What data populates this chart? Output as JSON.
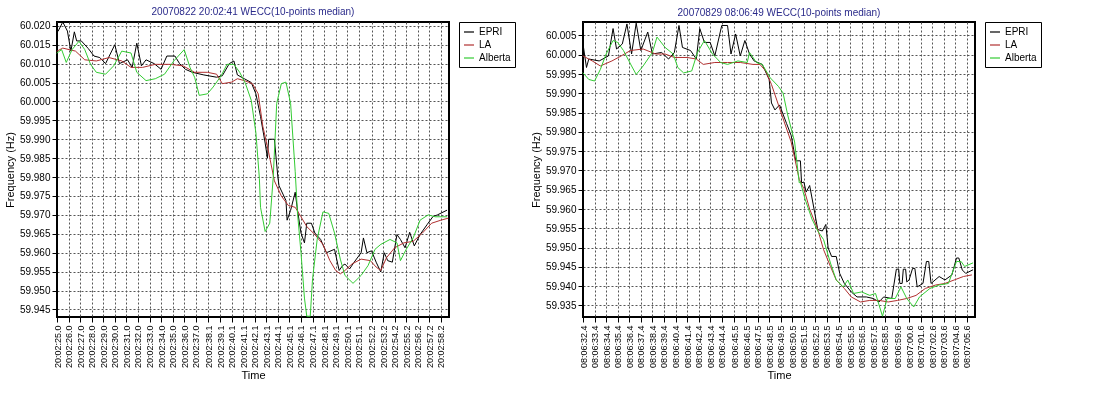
{
  "chart_data": [
    {
      "type": "line",
      "title": "20070822 20:02:41 WECC(10-points median)",
      "xlabel": "Time",
      "ylabel": "Frequency (Hz)",
      "legend": "right",
      "grid": true,
      "line_style": "solid",
      "xlim": [
        "2007-08-22T20:02:25.0",
        "2007-08-22T20:02:58.9"
      ],
      "ylim": [
        59.943,
        60.021
      ],
      "xticks": [
        {
          "value": "2007-08-22T20:02:25.0",
          "label": "20:02:25.0"
        },
        {
          "value": "2007-08-22T20:02:26.0",
          "label": "20:02:26.0"
        },
        {
          "value": "2007-08-22T20:02:27.0",
          "label": "20:02:27.0"
        },
        {
          "value": "2007-08-22T20:02:28.0",
          "label": "20:02:28.0"
        },
        {
          "value": "2007-08-22T20:02:29.0",
          "label": "20:02:29.0"
        },
        {
          "value": "2007-08-22T20:02:30.0",
          "label": "20:02:30.0"
        },
        {
          "value": "2007-08-22T20:02:31.0",
          "label": "20:02:31.0"
        },
        {
          "value": "2007-08-22T20:02:32.0",
          "label": "20:02:32.0"
        },
        {
          "value": "2007-08-22T20:02:33.0",
          "label": "20:02:33.0"
        },
        {
          "value": "2007-08-22T20:02:34.0",
          "label": "20:02:34.0"
        },
        {
          "value": "2007-08-22T20:02:35.0",
          "label": "20:02:35.0"
        },
        {
          "value": "2007-08-22T20:02:36.0",
          "label": "20:02:36.0"
        },
        {
          "value": "2007-08-22T20:02:37.0",
          "label": "20:02:37.0"
        },
        {
          "value": "2007-08-22T20:02:38.1",
          "label": "20:02:38.1"
        },
        {
          "value": "2007-08-22T20:02:39.1",
          "label": "20:02:39.1"
        },
        {
          "value": "2007-08-22T20:02:40.1",
          "label": "20:02:40.1"
        },
        {
          "value": "2007-08-22T20:02:41.1",
          "label": "20:02:41.1"
        },
        {
          "value": "2007-08-22T20:02:42.1",
          "label": "20:02:42.1"
        },
        {
          "value": "2007-08-22T20:02:43.1",
          "label": "20:02:43.1"
        },
        {
          "value": "2007-08-22T20:02:44.1",
          "label": "20:02:44.1"
        },
        {
          "value": "2007-08-22T20:02:45.1",
          "label": "20:02:45.1"
        },
        {
          "value": "2007-08-22T20:02:46.1",
          "label": "20:02:46.1"
        },
        {
          "value": "2007-08-22T20:02:47.1",
          "label": "20:02:47.1"
        },
        {
          "value": "2007-08-22T20:02:48.1",
          "label": "20:02:48.1"
        },
        {
          "value": "2007-08-22T20:02:49.1",
          "label": "20:02:49.1"
        },
        {
          "value": "2007-08-22T20:02:50.1",
          "label": "20:02:50.1"
        },
        {
          "value": "2007-08-22T20:02:51.1",
          "label": "20:02:51.1"
        },
        {
          "value": "2007-08-22T20:02:52.2",
          "label": "20:02:52.2"
        },
        {
          "value": "2007-08-22T20:02:53.2",
          "label": "20:02:53.2"
        },
        {
          "value": "2007-08-22T20:02:54.2",
          "label": "20:02:54.2"
        },
        {
          "value": "2007-08-22T20:02:55.2",
          "label": "20:02:55.2"
        },
        {
          "value": "2007-08-22T20:02:56.2",
          "label": "20:02:56.2"
        },
        {
          "value": "2007-08-22T20:02:57.2",
          "label": "20:02:57.2"
        },
        {
          "value": "2007-08-22T20:02:58.2",
          "label": "20:02:58.2"
        }
      ],
      "yticks": [
        {
          "value": 59.945,
          "label": "59.945"
        },
        {
          "value": 59.95,
          "label": "59.950"
        },
        {
          "value": 59.955,
          "label": "59.955"
        },
        {
          "value": 59.96,
          "label": "59.960"
        },
        {
          "value": 59.965,
          "label": "59.965"
        },
        {
          "value": 59.97,
          "label": "59.970"
        },
        {
          "value": 59.975,
          "label": "59.975"
        },
        {
          "value": 59.98,
          "label": "59.980"
        },
        {
          "value": 59.985,
          "label": "59.985"
        },
        {
          "value": 59.99,
          "label": "59.990"
        },
        {
          "value": 59.995,
          "label": "59.995"
        },
        {
          "value": 60.0,
          "label": "60.000"
        },
        {
          "value": 60.005,
          "label": "60.005"
        },
        {
          "value": 60.01,
          "label": "60.010"
        },
        {
          "value": 60.015,
          "label": "60.015"
        },
        {
          "value": 60.02,
          "label": "60.020"
        }
      ],
      "series": [
        {
          "name": "EPRI",
          "color": "#000000",
          "x": [
            "2007-08-22T20:02:25.1",
            "2007-08-22T20:02:25.5",
            "2007-08-22T20:02:25.9",
            "2007-08-22T20:02:26.2",
            "2007-08-22T20:02:26.5",
            "2007-08-22T20:02:26.7",
            "2007-08-22T20:02:27.1",
            "2007-08-22T20:02:27.7",
            "2007-08-22T20:02:28.2",
            "2007-08-22T20:02:28.7",
            "2007-08-22T20:02:29.2",
            "2007-08-22T20:02:30.0",
            "2007-08-22T20:02:30.4",
            "2007-08-22T20:02:31.1",
            "2007-08-22T20:02:31.5",
            "2007-08-22T20:02:31.9",
            "2007-08-22T20:02:32.3",
            "2007-08-22T20:02:32.7",
            "2007-08-22T20:02:33.4",
            "2007-08-22T20:02:34.0",
            "2007-08-22T20:02:34.5",
            "2007-08-22T20:02:35.2",
            "2007-08-22T20:02:35.6",
            "2007-08-22T20:02:36.1",
            "2007-08-22T20:02:36.7",
            "2007-08-22T20:02:37.7",
            "2007-08-22T20:02:38.8",
            "2007-08-22T20:02:39.3",
            "2007-08-22T20:02:39.9",
            "2007-08-22T20:02:40.3",
            "2007-08-22T20:02:40.6",
            "2007-08-22T20:02:41.2",
            "2007-08-22T20:02:41.8",
            "2007-08-22T20:02:42.2",
            "2007-08-22T20:02:42.6",
            "2007-08-22T20:02:43.0",
            "2007-08-22T20:02:43.2",
            "2007-08-22T20:02:43.3",
            "2007-08-22T20:02:43.8",
            "2007-08-22T20:02:44.1",
            "2007-08-22T20:02:44.2",
            "2007-08-22T20:02:44.8",
            "2007-08-22T20:02:44.9",
            "2007-08-22T20:02:45.2",
            "2007-08-22T20:02:45.6",
            "2007-08-22T20:02:45.8",
            "2007-08-22T20:02:46.1",
            "2007-08-22T20:02:46.4",
            "2007-08-22T20:02:46.6",
            "2007-08-22T20:02:47.0",
            "2007-08-22T20:02:47.3",
            "2007-08-22T20:02:47.8",
            "2007-08-22T20:02:48.3",
            "2007-08-22T20:02:49.0",
            "2007-08-22T20:02:49.4",
            "2007-08-22T20:02:49.7",
            "2007-08-22T20:02:49.9",
            "2007-08-22T20:02:50.3",
            "2007-08-22T20:02:50.7",
            "2007-08-22T20:02:51.3",
            "2007-08-22T20:02:51.5",
            "2007-08-22T20:02:51.8",
            "2007-08-22T20:02:52.2",
            "2007-08-22T20:02:52.6",
            "2007-08-22T20:02:53.0",
            "2007-08-22T20:02:53.3",
            "2007-08-22T20:02:53.6",
            "2007-08-22T20:02:54.0",
            "2007-08-22T20:02:54.4",
            "2007-08-22T20:02:54.7",
            "2007-08-22T20:02:55.1",
            "2007-08-22T20:02:55.5",
            "2007-08-22T20:02:55.9",
            "2007-08-22T20:02:56.4",
            "2007-08-22T20:02:57.0",
            "2007-08-22T20:02:57.5",
            "2007-08-22T20:02:57.9",
            "2007-08-22T20:02:58.7"
          ],
          "values": [
            60.0186,
            60.021,
            60.0186,
            60.0133,
            60.0184,
            60.016,
            60.016,
            60.014,
            60.012,
            60.0116,
            60.01,
            60.015,
            60.01,
            60.011,
            60.009,
            60.0154,
            60.0094,
            60.011,
            60.01,
            60.0085,
            60.012,
            60.012,
            60.01,
            60.0085,
            60.0077,
            60.007,
            60.0064,
            60.0068,
            60.01,
            60.0107,
            60.007,
            60.006,
            60.005,
            60.002,
            59.996,
            59.989,
            59.985,
            59.99,
            59.99,
            59.98,
            59.9777,
            59.9738,
            59.9686,
            59.9712,
            59.976,
            59.9712,
            59.9652,
            59.9626,
            59.9678,
            59.9678,
            59.9652,
            59.9635,
            59.96,
            59.9609,
            59.9553,
            59.9566,
            59.957,
            59.9557,
            59.9575,
            59.96,
            59.9639,
            59.96,
            59.9605,
            59.9575,
            59.9549,
            59.96,
            59.9579,
            59.9575,
            59.9648,
            59.9635,
            59.9613,
            59.9654,
            59.9618,
            59.9648,
            59.9674,
            59.9695,
            59.97,
            59.9712
          ]
        },
        {
          "name": "LA",
          "color": "#b03030",
          "x": [
            "2007-08-22T20:02:25.0",
            "2007-08-22T20:02:25.5",
            "2007-08-22T20:02:26.6",
            "2007-08-22T20:02:27.4",
            "2007-08-22T20:02:28.4",
            "2007-08-22T20:02:29.5",
            "2007-08-22T20:02:30.6",
            "2007-08-22T20:02:31.4",
            "2007-08-22T20:02:32.4",
            "2007-08-22T20:02:33.5",
            "2007-08-22T20:02:34.8",
            "2007-08-22T20:02:35.9",
            "2007-08-22T20:02:36.9",
            "2007-08-22T20:02:38.0",
            "2007-08-22T20:02:38.8",
            "2007-08-22T20:02:39.3",
            "2007-08-22T20:02:40.1",
            "2007-08-22T20:02:40.6",
            "2007-08-22T20:02:41.2",
            "2007-08-22T20:02:41.9",
            "2007-08-22T20:02:42.4",
            "2007-08-22T20:02:42.8",
            "2007-08-22T20:02:43.3",
            "2007-08-22T20:02:43.8",
            "2007-08-22T20:02:44.4",
            "2007-08-22T20:02:45.0",
            "2007-08-22T20:02:45.6",
            "2007-08-22T20:02:46.1",
            "2007-08-22T20:02:46.6",
            "2007-08-22T20:02:47.3",
            "2007-08-22T20:02:48.0",
            "2007-08-22T20:02:48.6",
            "2007-08-22T20:02:49.1",
            "2007-08-22T20:02:49.5",
            "2007-08-22T20:02:49.9",
            "2007-08-22T20:02:50.5",
            "2007-08-22T20:02:51.3",
            "2007-08-22T20:02:52.1",
            "2007-08-22T20:02:52.6",
            "2007-08-22T20:02:53.0",
            "2007-08-22T20:02:53.5",
            "2007-08-22T20:02:54.2",
            "2007-08-22T20:02:55.0",
            "2007-08-22T20:02:55.8",
            "2007-08-22T20:02:56.6",
            "2007-08-22T20:02:57.4",
            "2007-08-22T20:02:58.2",
            "2007-08-22T20:02:58.8"
          ],
          "values": [
            60.0133,
            60.0141,
            60.0133,
            60.011,
            60.0107,
            60.0116,
            60.0107,
            60.009,
            60.009,
            60.0098,
            60.0098,
            60.0094,
            60.0077,
            60.0077,
            60.0072,
            60.0047,
            60.0051,
            60.006,
            60.0055,
            60.0047,
            60.002,
            59.9934,
            59.9866,
            59.979,
            59.975,
            59.9725,
            59.972,
            59.9695,
            59.9669,
            59.9648,
            59.9622,
            59.9579,
            59.9553,
            59.9544,
            59.9553,
            59.957,
            59.9583,
            59.9579,
            59.9562,
            59.9553,
            59.9587,
            59.9613,
            59.9626,
            59.963,
            59.9652,
            59.9678,
            59.9686,
            59.9691
          ]
        },
        {
          "name": "Alberta",
          "color": "#33cc33",
          "x": [
            "2007-08-22T20:02:25.0",
            "2007-08-22T20:02:25.4",
            "2007-08-22T20:02:25.8",
            "2007-08-22T20:02:26.3",
            "2007-08-22T20:02:26.9",
            "2007-08-22T20:02:27.4",
            "2007-08-22T20:02:27.9",
            "2007-08-22T20:02:28.4",
            "2007-08-22T20:02:29.2",
            "2007-08-22T20:02:29.9",
            "2007-08-22T20:02:30.6",
            "2007-08-22T20:02:31.4",
            "2007-08-22T20:02:31.9",
            "2007-08-22T20:02:32.7",
            "2007-08-22T20:02:33.5",
            "2007-08-22T20:02:34.3",
            "2007-08-22T20:02:35.1",
            "2007-08-22T20:02:36.0",
            "2007-08-22T20:02:36.5",
            "2007-08-22T20:02:36.9",
            "2007-08-22T20:02:37.3",
            "2007-08-22T20:02:38.0",
            "2007-08-22T20:02:38.5",
            "2007-08-22T20:02:39.2",
            "2007-08-22T20:02:39.7",
            "2007-08-22T20:02:40.3",
            "2007-08-22T20:02:40.8",
            "2007-08-22T20:02:41.3",
            "2007-08-22T20:02:41.8",
            "2007-08-22T20:02:42.2",
            "2007-08-22T20:02:42.5",
            "2007-08-22T20:02:42.6",
            "2007-08-22T20:02:43.0",
            "2007-08-22T20:02:43.4",
            "2007-08-22T20:02:43.7",
            "2007-08-22T20:02:44.0",
            "2007-08-22T20:02:44.4",
            "2007-08-22T20:02:44.8",
            "2007-08-22T20:02:45.2",
            "2007-08-22T20:02:45.6",
            "2007-08-22T20:02:45.8",
            "2007-08-22T20:02:46.1",
            "2007-08-22T20:02:46.4",
            "2007-08-22T20:02:46.6",
            "2007-08-22T20:02:46.9",
            "2007-08-22T20:02:47.1",
            "2007-08-22T20:02:47.5",
            "2007-08-22T20:02:48.0",
            "2007-08-22T20:02:48.5",
            "2007-08-22T20:02:49.0",
            "2007-08-22T20:02:49.5",
            "2007-08-22T20:02:49.9",
            "2007-08-22T20:02:50.6",
            "2007-08-22T20:02:51.3",
            "2007-08-22T20:02:51.9",
            "2007-08-22T20:02:52.5",
            "2007-08-22T20:02:53.0",
            "2007-08-22T20:02:53.8",
            "2007-08-22T20:02:54.4",
            "2007-08-22T20:02:54.7",
            "2007-08-22T20:02:55.2",
            "2007-08-22T20:02:55.8",
            "2007-08-22T20:02:56.4",
            "2007-08-22T20:02:57.1",
            "2007-08-22T20:02:57.7",
            "2007-08-22T20:02:58.7"
          ],
          "values": [
            60.0128,
            60.0137,
            60.0103,
            60.0137,
            60.0159,
            60.0137,
            60.0098,
            60.0077,
            60.0072,
            60.0094,
            60.0133,
            60.0128,
            60.0077,
            60.0055,
            60.006,
            60.0072,
            60.0107,
            60.0137,
            60.009,
            60.0064,
            60.0016,
            60.002,
            60.0038,
            60.0068,
            60.0098,
            60.0098,
            60.0077,
            60.0047,
            60.0003,
            59.9917,
            59.9797,
            59.972,
            59.9656,
            59.9678,
            59.98,
            59.9995,
            60.0047,
            60.0051,
            59.9995,
            59.9814,
            59.9704,
            59.96,
            59.948,
            59.9432,
            59.9432,
            59.9531,
            59.9635,
            59.9708,
            59.9704,
            59.9652,
            59.9583,
            59.954,
            59.9519,
            59.954,
            59.9566,
            59.9609,
            59.9622,
            59.9635,
            59.9626,
            59.9579,
            59.9609,
            59.9639,
            59.9686,
            59.97,
            59.9695,
            59.9695
          ]
        }
      ]
    },
    {
      "type": "line",
      "title": "20070829 08:06:49 WECC(10-points median)",
      "xlabel": "Time",
      "ylabel": "Frequency (Hz)",
      "legend": "right",
      "grid": true,
      "line_style": "solid",
      "xlim": [
        "2007-08-29T08:06:32.4",
        "2007-08-29T08:07:06.3"
      ],
      "ylim": [
        59.932,
        60.0085
      ],
      "xticks": [
        {
          "value": "2007-08-29T08:06:32.4",
          "label": "08:06:32.4"
        },
        {
          "value": "2007-08-29T08:06:33.4",
          "label": "08:06:33.4"
        },
        {
          "value": "2007-08-29T08:06:34.4",
          "label": "08:06:34.4"
        },
        {
          "value": "2007-08-29T08:06:35.4",
          "label": "08:06:35.4"
        },
        {
          "value": "2007-08-29T08:06:36.4",
          "label": "08:06:36.4"
        },
        {
          "value": "2007-08-29T08:06:37.4",
          "label": "08:06:37.4"
        },
        {
          "value": "2007-08-29T08:06:38.4",
          "label": "08:06:38.4"
        },
        {
          "value": "2007-08-29T08:06:39.4",
          "label": "08:06:39.4"
        },
        {
          "value": "2007-08-29T08:06:40.4",
          "label": "08:06:40.4"
        },
        {
          "value": "2007-08-29T08:06:41.4",
          "label": "08:06:41.4"
        },
        {
          "value": "2007-08-29T08:06:42.4",
          "label": "08:06:42.4"
        },
        {
          "value": "2007-08-29T08:06:43.4",
          "label": "08:06:43.4"
        },
        {
          "value": "2007-08-29T08:06:44.4",
          "label": "08:06:44.4"
        },
        {
          "value": "2007-08-29T08:06:45.5",
          "label": "08:06:45.5"
        },
        {
          "value": "2007-08-29T08:06:46.5",
          "label": "08:06:46.5"
        },
        {
          "value": "2007-08-29T08:06:47.5",
          "label": "08:06:47.5"
        },
        {
          "value": "2007-08-29T08:06:48.5",
          "label": "08:06:48.5"
        },
        {
          "value": "2007-08-29T08:06:49.5",
          "label": "08:06:49.5"
        },
        {
          "value": "2007-08-29T08:06:50.5",
          "label": "08:06:50.5"
        },
        {
          "value": "2007-08-29T08:06:51.5",
          "label": "08:06:51.5"
        },
        {
          "value": "2007-08-29T08:06:52.5",
          "label": "08:06:52.5"
        },
        {
          "value": "2007-08-29T08:06:53.5",
          "label": "08:06:53.5"
        },
        {
          "value": "2007-08-29T08:06:54.5",
          "label": "08:06:54.5"
        },
        {
          "value": "2007-08-29T08:06:55.5",
          "label": "08:06:55.5"
        },
        {
          "value": "2007-08-29T08:06:56.5",
          "label": "08:06:56.5"
        },
        {
          "value": "2007-08-29T08:06:57.5",
          "label": "08:06:57.5"
        },
        {
          "value": "2007-08-29T08:06:58.5",
          "label": "08:06:58.5"
        },
        {
          "value": "2007-08-29T08:06:59.6",
          "label": "08:06:59.6"
        },
        {
          "value": "2007-08-29T08:07:00.6",
          "label": "08:07:00.6"
        },
        {
          "value": "2007-08-29T08:07:01.6",
          "label": "08:07:01.6"
        },
        {
          "value": "2007-08-29T08:07:02.6",
          "label": "08:07:02.6"
        },
        {
          "value": "2007-08-29T08:07:03.6",
          "label": "08:07:03.6"
        },
        {
          "value": "2007-08-29T08:07:04.6",
          "label": "08:07:04.6"
        },
        {
          "value": "2007-08-29T08:07:05.6",
          "label": "08:07:05.6"
        }
      ],
      "yticks": [
        {
          "value": 59.935,
          "label": "59.935"
        },
        {
          "value": 59.94,
          "label": "59.940"
        },
        {
          "value": 59.945,
          "label": "59.945"
        },
        {
          "value": 59.95,
          "label": "59.950"
        },
        {
          "value": 59.955,
          "label": "59.955"
        },
        {
          "value": 59.96,
          "label": "59.960"
        },
        {
          "value": 59.965,
          "label": "59.965"
        },
        {
          "value": 59.97,
          "label": "59.970"
        },
        {
          "value": 59.975,
          "label": "59.975"
        },
        {
          "value": 59.98,
          "label": "59.980"
        },
        {
          "value": 59.985,
          "label": "59.985"
        },
        {
          "value": 59.99,
          "label": "59.990"
        },
        {
          "value": 59.995,
          "label": "59.995"
        },
        {
          "value": 60.0,
          "label": "60.000"
        },
        {
          "value": 60.005,
          "label": "60.005"
        }
      ],
      "series": [
        {
          "name": "EPRI",
          "color": "#000000",
          "x": [
            "2007-08-29T08:06:32.4",
            "2007-08-29T08:06:32.7",
            "2007-08-29T08:06:32.9",
            "2007-08-29T08:06:33.8",
            "2007-08-29T08:06:34.6",
            "2007-08-29T08:06:35.0",
            "2007-08-29T08:06:35.3",
            "2007-08-29T08:06:35.8",
            "2007-08-29T08:06:36.2",
            "2007-08-29T08:06:36.6",
            "2007-08-29T08:06:37.0",
            "2007-08-29T08:06:37.4",
            "2007-08-29T08:06:38.0",
            "2007-08-29T08:06:38.4",
            "2007-08-29T08:06:39.2",
            "2007-08-29T08:06:39.8",
            "2007-08-29T08:06:40.3",
            "2007-08-29T08:06:40.7",
            "2007-08-29T08:06:41.0",
            "2007-08-29T08:06:41.7",
            "2007-08-29T08:06:42.2",
            "2007-08-29T08:06:42.5",
            "2007-08-29T08:06:42.9",
            "2007-08-29T08:06:43.4",
            "2007-08-29T08:06:43.8",
            "2007-08-29T08:06:44.4",
            "2007-08-29T08:06:44.9",
            "2007-08-29T08:06:45.2",
            "2007-08-29T08:06:45.6",
            "2007-08-29T08:06:46.0",
            "2007-08-29T08:06:46.4",
            "2007-08-29T08:06:46.8",
            "2007-08-29T08:06:47.2",
            "2007-08-29T08:06:47.9",
            "2007-08-29T08:06:48.5",
            "2007-08-29T08:06:48.7",
            "2007-08-29T08:06:49.0",
            "2007-08-29T08:06:49.4",
            "2007-08-29T08:06:50.0",
            "2007-08-29T08:06:50.4",
            "2007-08-29T08:06:50.8",
            "2007-08-29T08:06:51.2",
            "2007-08-29T08:06:51.3",
            "2007-08-29T08:06:51.5",
            "2007-08-29T08:06:51.7",
            "2007-08-29T08:06:52.0",
            "2007-08-29T08:06:52.3",
            "2007-08-29T08:06:52.7",
            "2007-08-29T08:06:53.1",
            "2007-08-29T08:06:53.4",
            "2007-08-29T08:06:53.6",
            "2007-08-29T08:06:53.9",
            "2007-08-29T08:06:54.3",
            "2007-08-29T08:06:54.6",
            "2007-08-29T08:06:55.0",
            "2007-08-29T08:06:55.6",
            "2007-08-29T08:06:56.1",
            "2007-08-29T08:06:56.9",
            "2007-08-29T08:06:57.5",
            "2007-08-29T08:06:58.0",
            "2007-08-29T08:06:58.4",
            "2007-08-29T08:06:59.1",
            "2007-08-29T08:06:59.5",
            "2007-08-29T08:06:59.7",
            "2007-08-29T08:06:59.8",
            "2007-08-29T08:07:00.0",
            "2007-08-29T08:07:00.1",
            "2007-08-29T08:07:00.3",
            "2007-08-29T08:07:00.4",
            "2007-08-29T08:07:00.6",
            "2007-08-29T08:07:00.9",
            "2007-08-29T08:07:01.1",
            "2007-08-29T08:07:01.3",
            "2007-08-29T08:07:01.8",
            "2007-08-29T08:07:02.1",
            "2007-08-29T08:07:02.3",
            "2007-08-29T08:07:02.5",
            "2007-08-29T08:07:03.2",
            "2007-08-29T08:07:03.7",
            "2007-08-29T08:07:04.3",
            "2007-08-29T08:07:04.7",
            "2007-08-29T08:07:04.9",
            "2007-08-29T08:07:05.2",
            "2007-08-29T08:07:05.5",
            "2007-08-29T08:07:06.1"
          ],
          "values": [
            60.0028,
            59.9967,
            59.9989,
            59.9984,
            59.9997,
            60.0068,
            60.0015,
            60.0028,
            60.008,
            60.0002,
            60.0082,
            60.0011,
            60.0059,
            60.0002,
            60.0006,
            59.9989,
            60.0006,
            60.0076,
            60.0019,
            60.0011,
            59.9989,
            60.0068,
            60.0032,
            60.0032,
            59.9997,
            60.0076,
            60.0076,
            60.0002,
            60.0054,
            59.9997,
            60.0037,
            60.0002,
            59.9984,
            59.9975,
            59.9936,
            59.9875,
            59.9857,
            59.987,
            59.9822,
            59.9791,
            59.9725,
            59.9725,
            59.9668,
            59.967,
            59.9644,
            59.9661,
            59.9613,
            59.9547,
            59.9543,
            59.956,
            59.9499,
            59.9477,
            59.9477,
            59.9433,
            59.9407,
            59.9385,
            59.9372,
            59.9372,
            59.9368,
            59.9359,
            59.9372,
            59.9368,
            59.9444,
            59.9444,
            59.9407,
            59.9407,
            59.9444,
            59.9444,
            59.9411,
            59.9416,
            59.9446,
            59.9446,
            59.9398,
            59.9407,
            59.9464,
            59.9464,
            59.9407,
            59.9425,
            59.9416,
            59.9429,
            59.9473,
            59.9473,
            59.9442,
            59.9433,
            59.9442
          ]
        },
        {
          "name": "LA",
          "color": "#b03030",
          "x": [
            "2007-08-29T08:06:32.4",
            "2007-08-29T08:06:33.2",
            "2007-08-29T08:06:33.9",
            "2007-08-29T08:06:34.9",
            "2007-08-29T08:06:35.7",
            "2007-08-29T08:06:36.5",
            "2007-08-29T08:06:37.6",
            "2007-08-29T08:06:38.7",
            "2007-08-29T08:06:39.5",
            "2007-08-29T08:06:40.3",
            "2007-08-29T08:06:41.4",
            "2007-08-29T08:06:42.2",
            "2007-08-29T08:06:42.8",
            "2007-08-29T08:06:43.8",
            "2007-08-29T08:06:44.9",
            "2007-08-29T08:06:46.0",
            "2007-08-29T08:06:47.1",
            "2007-08-29T08:06:47.7",
            "2007-08-29T08:06:48.2",
            "2007-08-29T08:06:48.7",
            "2007-08-29T08:06:49.3",
            "2007-08-29T08:06:49.8",
            "2007-08-29T08:06:50.4",
            "2007-08-29T08:06:51.1",
            "2007-08-29T08:06:51.5",
            "2007-08-29T08:06:52.0",
            "2007-08-29T08:06:52.7",
            "2007-08-29T08:06:53.2",
            "2007-08-29T08:06:53.8",
            "2007-08-29T08:06:54.3",
            "2007-08-29T08:06:55.0",
            "2007-08-29T08:06:55.6",
            "2007-08-29T08:06:56.4",
            "2007-08-29T08:06:57.2",
            "2007-08-29T08:06:58.0",
            "2007-08-29T08:06:58.8",
            "2007-08-29T08:06:59.6",
            "2007-08-29T08:07:00.4",
            "2007-08-29T08:07:01.2",
            "2007-08-29T08:07:02.0",
            "2007-08-29T08:07:02.9",
            "2007-08-29T08:07:03.7",
            "2007-08-29T08:07:04.5",
            "2007-08-29T08:07:05.3",
            "2007-08-29T08:07:06.0"
          ],
          "values": [
            59.9997,
            59.9984,
            59.9971,
            59.9984,
            59.9997,
            60.0011,
            60.0015,
            60.0002,
            60.0002,
            59.9993,
            59.9993,
            59.9989,
            59.9975,
            59.998,
            59.998,
            59.998,
            59.9975,
            59.9975,
            59.9958,
            59.9923,
            59.987,
            59.9826,
            59.9774,
            59.9677,
            59.9653,
            59.96,
            59.9547,
            59.9495,
            59.9451,
            59.9416,
            59.9394,
            59.9372,
            59.9359,
            59.9363,
            59.9363,
            59.9359,
            59.9363,
            59.9368,
            59.9376,
            59.9394,
            59.9403,
            59.9407,
            59.9416,
            59.9425,
            59.9429
          ]
        },
        {
          "name": "Alberta",
          "color": "#33cc33",
          "x": [
            "2007-08-29T08:06:32.4",
            "2007-08-29T08:06:32.9",
            "2007-08-29T08:06:33.4",
            "2007-08-29T08:06:33.9",
            "2007-08-29T08:06:34.4",
            "2007-08-29T08:06:35.0",
            "2007-08-29T08:06:35.4",
            "2007-08-29T08:06:35.9",
            "2007-08-29T08:06:36.6",
            "2007-08-29T08:06:37.0",
            "2007-08-29T08:06:37.6",
            "2007-08-29T08:06:38.4",
            "2007-08-29T08:06:38.8",
            "2007-08-29T08:06:39.5",
            "2007-08-29T08:06:40.2",
            "2007-08-29T08:06:40.6",
            "2007-08-29T08:06:41.1",
            "2007-08-29T08:06:41.8",
            "2007-08-29T08:06:42.3",
            "2007-08-29T08:06:42.9",
            "2007-08-29T08:06:43.6",
            "2007-08-29T08:06:44.3",
            "2007-08-29T08:06:44.9",
            "2007-08-29T08:06:45.8",
            "2007-08-29T08:06:46.6",
            "2007-08-29T08:06:46.8",
            "2007-08-29T08:06:47.4",
            "2007-08-29T08:06:47.9",
            "2007-08-29T08:06:48.6",
            "2007-08-29T08:06:49.3",
            "2007-08-29T08:06:49.7",
            "2007-08-29T08:06:50.1",
            "2007-08-29T08:06:50.7",
            "2007-08-29T08:06:51.1",
            "2007-08-29T08:06:51.2",
            "2007-08-29T08:06:51.6",
            "2007-08-29T08:06:52.2",
            "2007-08-29T08:06:52.7",
            "2007-08-29T08:06:53.2",
            "2007-08-29T08:06:53.8",
            "2007-08-29T08:06:54.3",
            "2007-08-29T08:06:54.9",
            "2007-08-29T08:06:55.3",
            "2007-08-29T08:06:55.8",
            "2007-08-29T08:06:56.5",
            "2007-08-29T08:06:57.2",
            "2007-08-29T08:06:57.7",
            "2007-08-29T08:06:58.3",
            "2007-08-29T08:06:58.7",
            "2007-08-29T08:06:59.4",
            "2007-08-29T08:06:59.9",
            "2007-08-29T08:07:00.4",
            "2007-08-29T08:07:01.0",
            "2007-08-29T08:07:01.5",
            "2007-08-29T08:07:02.4",
            "2007-08-29T08:07:03.2",
            "2007-08-29T08:07:04.0",
            "2007-08-29T08:07:04.7",
            "2007-08-29T08:07:05.1",
            "2007-08-29T08:07:05.4",
            "2007-08-29T08:07:06.1"
          ],
          "values": [
            59.9953,
            59.9936,
            59.9932,
            59.9962,
            60.0002,
            60.0037,
            60.0032,
            60.0011,
            59.9971,
            59.9949,
            59.9971,
            60.0006,
            60.0046,
            60.0019,
            60.0002,
            59.9967,
            59.9953,
            59.9958,
            60.0006,
            60.0037,
            60.0002,
            59.998,
            59.9975,
            59.9984,
            59.998,
            60.0006,
            59.998,
            59.9975,
            59.994,
            59.9918,
            59.9901,
            59.9844,
            59.9774,
            59.9668,
            59.967,
            59.9626,
            59.9574,
            59.9543,
            59.9521,
            59.946,
            59.9416,
            59.9398,
            59.9416,
            59.9381,
            59.9385,
            59.9376,
            59.9381,
            59.9322,
            59.9368,
            59.9368,
            59.9398,
            59.9368,
            59.9346,
            59.9372,
            59.9394,
            59.9403,
            59.9407,
            59.9464,
            59.9464,
            59.9451,
            59.946
          ]
        }
      ]
    }
  ]
}
